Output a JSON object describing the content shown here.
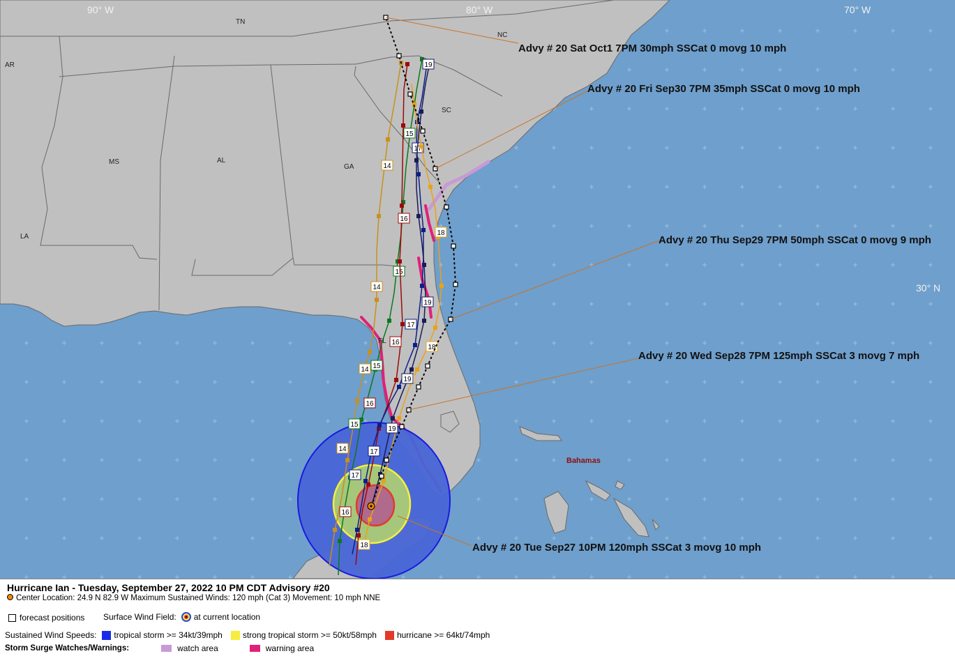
{
  "axes": {
    "lon_labels": [
      "90° W",
      "80° W",
      "70° W"
    ],
    "lat_labels": [
      "30° N"
    ]
  },
  "state_labels": [
    "TN",
    "NC",
    "AR",
    "SC",
    "MS",
    "AL",
    "GA",
    "LA",
    "FL"
  ],
  "place_labels": {
    "bahamas": "Bahamas"
  },
  "advisories": [
    "Advy # 20 Sat Oct1 7PM  30mph SSCat 0 movg 10 mph",
    "Advy # 20 Fri Sep30 7PM  35mph SSCat 0 movg 10 mph",
    "Advy # 20 Thu Sep29 7PM  50mph SSCat 0 movg 9 mph",
    "Advy # 20 Wed Sep28 7PM  125mph SSCat 3 movg 7 mph",
    "Advy # 20 Tue Sep27 10PM  120mph SSCat 3 movg 10 mph"
  ],
  "model_tracks": [
    {
      "color": "#c8901c",
      "labels": [
        "14",
        "14",
        "14",
        "14"
      ]
    },
    {
      "color": "#0a7a1a",
      "labels": [
        "15",
        "15",
        "15",
        "15",
        "15"
      ]
    },
    {
      "color": "#9b0a0a",
      "labels": [
        "16",
        "16",
        "16",
        "16",
        "16"
      ]
    },
    {
      "color": "#0b1f8a",
      "labels": [
        "17",
        "17",
        "17",
        "17",
        "17"
      ]
    },
    {
      "color": "#e8a21a",
      "labels": [
        "18",
        "18",
        "18",
        "18",
        "18"
      ]
    },
    {
      "color": "#1a1a5a",
      "labels": [
        "19",
        "19",
        "19",
        "19"
      ]
    }
  ],
  "colors": {
    "ocean": "#6f9fcc",
    "land": "#c0c0c0",
    "tropical_storm": "#2c44e0",
    "strong_tropical_storm": "#f6ee3e",
    "hurricane": "#e23a2a",
    "watch": "#c79ad6",
    "warning": "#e0207a"
  },
  "legend": {
    "title": "Hurricane Ian  -  Tuesday, September 27, 2022  10 PM CDT   Advisory #20",
    "center_line": "Center Location: 24.9 N  82.9 W   Maximum Sustained Winds: 120 mph (Cat 3) Movement: 10 mph NNE",
    "forecast_positions": "forecast positions",
    "surface_wind_field": "Surface Wind Field:",
    "at_current_location": "at current location",
    "sustained_wind_speeds": "Sustained Wind Speeds:",
    "tropical_storm": "tropical storm >= 34kt/39mph",
    "strong_tropical_storm": "strong tropical storm >= 50kt/58mph",
    "hurricane": "hurricane >= 64kt/74mph",
    "storm_surge": "Storm Surge Watches/Warnings:",
    "watch_area": "watch area",
    "warning_area": "warning area"
  }
}
